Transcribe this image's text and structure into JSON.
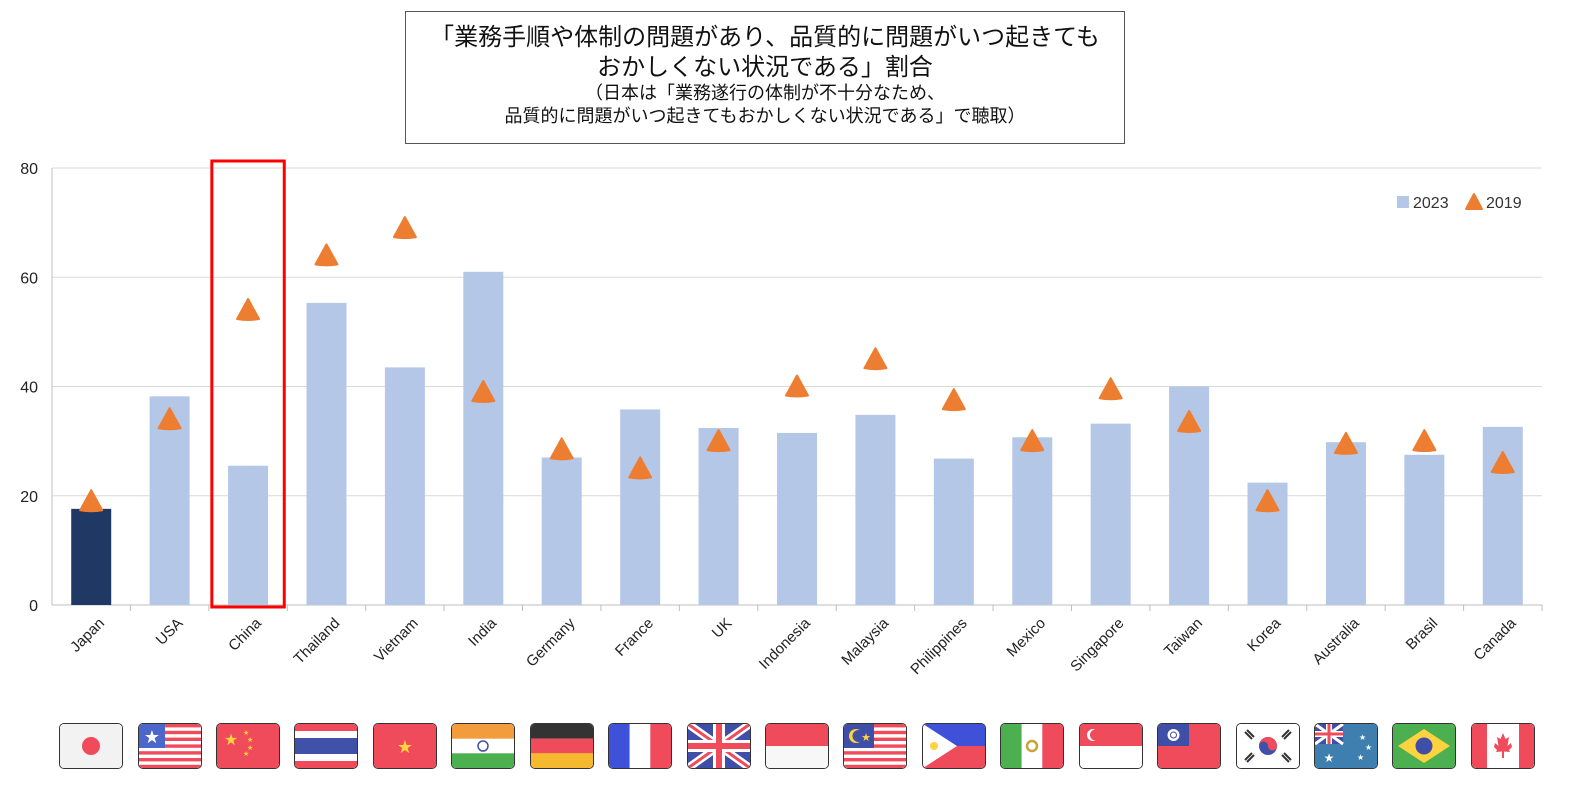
{
  "title": {
    "line1": "「業務手順や体制の問題があり、品質的に問題がいつ起きても",
    "line2": "おかしくない状況である」割合",
    "note1": "（日本は「業務遂行の体制が不十分なため、",
    "note2": "品質的に問題がいつ起きてもおかしくない状況である」で聴取）"
  },
  "colors": {
    "bar_2023": "#b4c7e7",
    "bar_japan": "#1f3864",
    "marker_2019": "#ed7d31",
    "highlight": "#ff0000",
    "grid": "#d9d9d9"
  },
  "flags": [
    "japan-flag-icon",
    "usa-flag-icon",
    "china-flag-icon",
    "thailand-flag-icon",
    "vietnam-flag-icon",
    "india-flag-icon",
    "germany-flag-icon",
    "france-flag-icon",
    "uk-flag-icon",
    "indonesia-flag-icon",
    "malaysia-flag-icon",
    "philippines-flag-icon",
    "mexico-flag-icon",
    "singapore-flag-icon",
    "taiwan-flag-icon",
    "korea-flag-icon",
    "australia-flag-icon",
    "brazil-flag-icon",
    "canada-flag-icon"
  ],
  "chart_data": {
    "type": "bar",
    "categories": [
      "Japan",
      "USA",
      "China",
      "Thailand",
      "Vietnam",
      "India",
      "Germany",
      "France",
      "UK",
      "Indonesia",
      "Malaysia",
      "Philippines",
      "Mexico",
      "Singapore",
      "Taiwan",
      "Korea",
      "Australia",
      "Brasil",
      "Canada"
    ],
    "series": [
      {
        "name": "2023",
        "kind": "bar",
        "values": [
          17.6,
          38.2,
          25.5,
          55.3,
          43.5,
          61.0,
          27.0,
          35.8,
          32.4,
          31.5,
          34.8,
          26.8,
          30.7,
          33.2,
          40.0,
          22.4,
          29.8,
          27.5,
          32.6
        ]
      },
      {
        "name": "2019",
        "kind": "marker-triangle",
        "values": [
          19.0,
          34.0,
          54.0,
          64.0,
          69.0,
          39.0,
          28.5,
          25.0,
          30.0,
          40.0,
          45.0,
          37.5,
          30.0,
          39.5,
          33.5,
          19.0,
          29.5,
          30.0,
          26.0
        ]
      }
    ],
    "ylim": [
      0,
      80
    ],
    "yticks": [
      0,
      20,
      40,
      60,
      80
    ],
    "grid": true,
    "legend": "top-right",
    "highlight_category": "China"
  }
}
